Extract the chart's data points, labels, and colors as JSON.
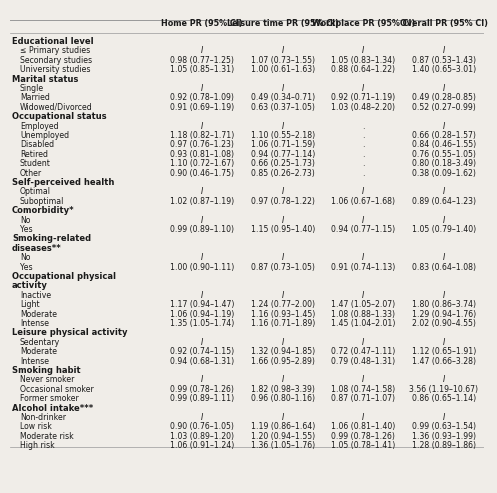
{
  "columns": [
    "Home PR (95% CI)",
    "Leisure time PR (95% CI)",
    "Workplace PR (95% CI)",
    "Overall PR (95% CI)"
  ],
  "rows": [
    {
      "label": "Educational level",
      "bold": true,
      "indent": 0,
      "values": [
        "",
        "",
        "",
        ""
      ]
    },
    {
      "label": "≤ Primary studies",
      "bold": false,
      "indent": 1,
      "values": [
        "I",
        "I",
        "I",
        "I"
      ]
    },
    {
      "label": "Secondary studies",
      "bold": false,
      "indent": 1,
      "values": [
        "0.98 (0.77–1.25)",
        "1.07 (0.73–1.55)",
        "1.05 (0.83–1.34)",
        "0.87 (0.53–1.43)"
      ]
    },
    {
      "label": "University studies",
      "bold": false,
      "indent": 1,
      "values": [
        "1.05 (0.85–1.31)",
        "1.00 (0.61–1.63)",
        "0.88 (0.64–1.22)",
        "1.40 (0.65–3.01)"
      ]
    },
    {
      "label": "Marital status",
      "bold": true,
      "indent": 0,
      "values": [
        "",
        "",
        "",
        ""
      ]
    },
    {
      "label": "Single",
      "bold": false,
      "indent": 1,
      "values": [
        "I",
        "I",
        "I",
        "I"
      ]
    },
    {
      "label": "Married",
      "bold": false,
      "indent": 1,
      "values": [
        "0.92 (0.78–1.09)",
        "0.49 (0.34–0.71)",
        "0.92 (0.71–1.19)",
        "0.49 (0.28–0.85)"
      ]
    },
    {
      "label": "Widowed/Divorced",
      "bold": false,
      "indent": 1,
      "values": [
        "0.91 (0.69–1.19)",
        "0.63 (0.37–1.05)",
        "1.03 (0.48–2.20)",
        "0.52 (0.27–0.99)"
      ]
    },
    {
      "label": "Occupational status",
      "bold": true,
      "indent": 0,
      "values": [
        "",
        "",
        "",
        ""
      ]
    },
    {
      "label": "Employed",
      "bold": false,
      "indent": 1,
      "values": [
        "I",
        "I",
        ".",
        "I"
      ]
    },
    {
      "label": "Unemployed",
      "bold": false,
      "indent": 1,
      "values": [
        "1.18 (0.82–1.71)",
        "1.10 (0.55–2.18)",
        ".",
        "0.66 (0.28–1.57)"
      ]
    },
    {
      "label": "Disabled",
      "bold": false,
      "indent": 1,
      "values": [
        "0.97 (0.76–1.23)",
        "1.06 (0.71–1.59)",
        ".",
        "0.84 (0.46–1.55)"
      ]
    },
    {
      "label": "Retired",
      "bold": false,
      "indent": 1,
      "values": [
        "0.93 (0.81–1.08)",
        "0.94 (0.77–1.14)",
        ".",
        "0.76 (0.55–1.05)"
      ]
    },
    {
      "label": "Student",
      "bold": false,
      "indent": 1,
      "values": [
        "1.10 (0.72–1.67)",
        "0.66 (0.25–1.73)",
        ".",
        "0.80 (0.18–3.49)"
      ]
    },
    {
      "label": "Other",
      "bold": false,
      "indent": 1,
      "values": [
        "0.90 (0.46–1.75)",
        "0.85 (0.26–2.73)",
        ".",
        "0.38 (0.09–1.62)"
      ]
    },
    {
      "label": "Self-perceived health",
      "bold": true,
      "indent": 0,
      "values": [
        "",
        "",
        "",
        ""
      ]
    },
    {
      "label": "Optimal",
      "bold": false,
      "indent": 1,
      "values": [
        "I",
        "I",
        "I",
        "I"
      ]
    },
    {
      "label": "Suboptimal",
      "bold": false,
      "indent": 1,
      "values": [
        "1.02 (0.87–1.19)",
        "0.97 (0.78–1.22)",
        "1.06 (0.67–1.68)",
        "0.89 (0.64–1.23)"
      ]
    },
    {
      "label": "Comorbidity*",
      "bold": true,
      "indent": 0,
      "values": [
        "",
        "",
        "",
        ""
      ]
    },
    {
      "label": "No",
      "bold": false,
      "indent": 1,
      "values": [
        "I",
        "I",
        "I",
        "I"
      ]
    },
    {
      "label": "Yes",
      "bold": false,
      "indent": 1,
      "values": [
        "0.99 (0.89–1.10)",
        "1.15 (0.95–1.40)",
        "0.94 (0.77–1.15)",
        "1.05 (0.79–1.40)"
      ]
    },
    {
      "label": "Smoking-related",
      "bold": true,
      "indent": 0,
      "values": [
        "",
        "",
        "",
        ""
      ]
    },
    {
      "label": "diseases**",
      "bold": true,
      "indent": 0,
      "values": [
        "",
        "",
        "",
        ""
      ]
    },
    {
      "label": "No",
      "bold": false,
      "indent": 1,
      "values": [
        "I",
        "I",
        "I",
        "I"
      ]
    },
    {
      "label": "Yes",
      "bold": false,
      "indent": 1,
      "values": [
        "1.00 (0.90–1.11)",
        "0.87 (0.73–1.05)",
        "0.91 (0.74–1.13)",
        "0.83 (0.64–1.08)"
      ]
    },
    {
      "label": "Occupational physical",
      "bold": true,
      "indent": 0,
      "values": [
        "",
        "",
        "",
        ""
      ]
    },
    {
      "label": "activity",
      "bold": true,
      "indent": 0,
      "values": [
        "",
        "",
        "",
        ""
      ]
    },
    {
      "label": "Inactive",
      "bold": false,
      "indent": 1,
      "values": [
        "I",
        "I",
        "I",
        "I"
      ]
    },
    {
      "label": "Light",
      "bold": false,
      "indent": 1,
      "values": [
        "1.17 (0.94–1.47)",
        "1.24 (0.77–2.00)",
        "1.47 (1.05–2.07)",
        "1.80 (0.86–3.74)"
      ]
    },
    {
      "label": "Moderate",
      "bold": false,
      "indent": 1,
      "values": [
        "1.06 (0.94–1.19)",
        "1.16 (0.93–1.45)",
        "1.08 (0.88–1.33)",
        "1.29 (0.94–1.76)"
      ]
    },
    {
      "label": "Intense",
      "bold": false,
      "indent": 1,
      "values": [
        "1.35 (1.05–1.74)",
        "1.16 (0.71–1.89)",
        "1.45 (1.04–2.01)",
        "2.02 (0.90–4.55)"
      ]
    },
    {
      "label": "Leisure physical activity",
      "bold": true,
      "indent": 0,
      "values": [
        "",
        "",
        "",
        ""
      ]
    },
    {
      "label": "Sedentary",
      "bold": false,
      "indent": 1,
      "values": [
        "I",
        "I",
        "I",
        "I"
      ]
    },
    {
      "label": "Moderate",
      "bold": false,
      "indent": 1,
      "values": [
        "0.92 (0.74–1.15)",
        "1.32 (0.94–1.85)",
        "0.72 (0.47–1.11)",
        "1.12 (0.65–1.91)"
      ]
    },
    {
      "label": "Intense",
      "bold": false,
      "indent": 1,
      "values": [
        "0.94 (0.68–1.31)",
        "1.66 (0.95–2.89)",
        "0.79 (0.48–1.31)",
        "1.47 (0.66–3.28)"
      ]
    },
    {
      "label": "Smoking habit",
      "bold": true,
      "indent": 0,
      "values": [
        "",
        "",
        "",
        ""
      ]
    },
    {
      "label": "Never smoker",
      "bold": false,
      "indent": 1,
      "values": [
        "I",
        "I",
        "I",
        "I"
      ]
    },
    {
      "label": "Occasional smoker",
      "bold": false,
      "indent": 1,
      "values": [
        "0.99 (0.78–1.26)",
        "1.82 (0.98–3.39)",
        "1.08 (0.74–1.58)",
        "3.56 (1.19–10.67)"
      ]
    },
    {
      "label": "Former smoker",
      "bold": false,
      "indent": 1,
      "values": [
        "0.99 (0.89–1.11)",
        "0.96 (0.80–1.16)",
        "0.87 (0.71–1.07)",
        "0.86 (0.65–1.14)"
      ]
    },
    {
      "label": "Alcohol intake***",
      "bold": true,
      "indent": 0,
      "values": [
        "",
        "",
        "",
        ""
      ]
    },
    {
      "label": "Non-drinker",
      "bold": false,
      "indent": 1,
      "values": [
        "I",
        "I",
        "I",
        "I"
      ]
    },
    {
      "label": "Low risk",
      "bold": false,
      "indent": 1,
      "values": [
        "0.90 (0.76–1.05)",
        "1.19 (0.86–1.64)",
        "1.06 (0.81–1.40)",
        "0.99 (0.63–1.54)"
      ]
    },
    {
      "label": "Moderate risk",
      "bold": false,
      "indent": 1,
      "values": [
        "1.03 (0.89–1.20)",
        "1.20 (0.94–1.55)",
        "0.99 (0.78–1.26)",
        "1.36 (0.93–1.99)"
      ]
    },
    {
      "label": "High risk",
      "bold": false,
      "indent": 1,
      "values": [
        "1.06 (0.91–1.24)",
        "1.36 (1.05–1.76)",
        "1.05 (0.78–1.41)",
        "1.28 (0.89–1.86)"
      ]
    }
  ],
  "bg_color": "#f0ede8",
  "text_color": "#1a1a1a",
  "line_color": "#999999",
  "header_fontsize": 5.8,
  "label_fontsize": 5.6,
  "value_fontsize": 5.6,
  "bold_fontsize": 6.0
}
